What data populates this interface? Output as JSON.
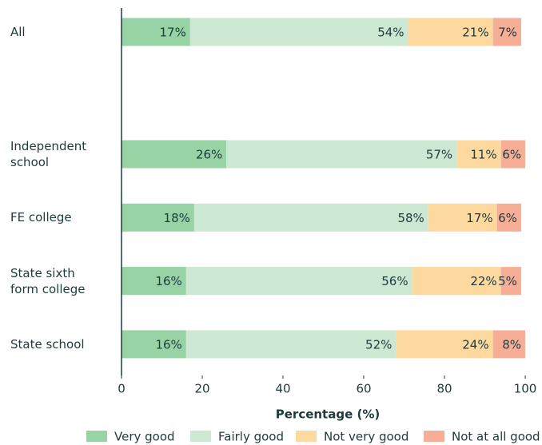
{
  "chart_data": {
    "type": "stacked-bar-horizontal",
    "categories": [
      "All",
      null,
      "Independent school",
      "FE college",
      "State sixth form college",
      "State school"
    ],
    "series": [
      {
        "name": "Very good",
        "color": "#98d3a5",
        "values": [
          17,
          null,
          26,
          18,
          16,
          16
        ],
        "value_labels": [
          "17%",
          null,
          "26%",
          "18%",
          "16%",
          "16%"
        ]
      },
      {
        "name": "Fairly good",
        "color": "#cde8d2",
        "values": [
          54,
          null,
          57,
          58,
          56,
          52
        ],
        "value_labels": [
          "54%",
          null,
          "57%",
          "58%",
          "56%",
          "52%"
        ]
      },
      {
        "name": "Not very good",
        "color": "#fdd9a0",
        "values": [
          21,
          null,
          11,
          17,
          22,
          24
        ],
        "value_labels": [
          "21%",
          null,
          "11%",
          "17%",
          "22%",
          "24%"
        ]
      },
      {
        "name": "Not at all good",
        "color": "#f7ae97",
        "values": [
          7,
          null,
          6,
          6,
          5,
          8
        ],
        "value_labels": [
          "7%",
          null,
          "6%",
          "6%",
          "5%",
          "8%"
        ]
      }
    ],
    "xlabel": "Percentage (%)",
    "xlim": [
      0,
      100
    ],
    "xticks": [
      0,
      20,
      40,
      60,
      80,
      100
    ],
    "legend": "bottom"
  }
}
